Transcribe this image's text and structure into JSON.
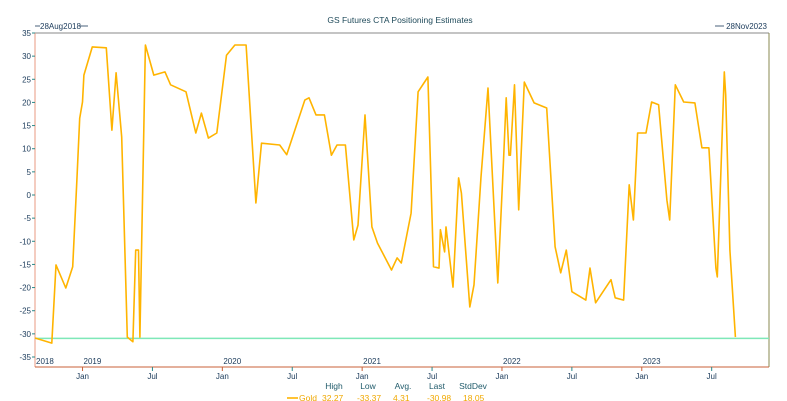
{
  "chart_data": {
    "type": "line",
    "title": "GS Futures CTA Positioning Estimates",
    "start_label": "28Aug2018",
    "end_label": "28Nov2023",
    "xlim": [
      2018.66,
      2023.91
    ],
    "ylim": [
      -37.2,
      35
    ],
    "yticks": [
      35,
      30,
      25,
      20,
      15,
      10,
      5,
      0,
      -5,
      -10,
      -15,
      -20,
      -25,
      -30,
      -35
    ],
    "year_labels": [
      {
        "label": "2018",
        "x": 2018.66
      },
      {
        "label": "2019",
        "x": 2019.0
      },
      {
        "label": "2020",
        "x": 2020.0
      },
      {
        "label": "2021",
        "x": 2021.0
      },
      {
        "label": "2022",
        "x": 2022.0
      },
      {
        "label": "2023",
        "x": 2023.0
      }
    ],
    "month_ticks": [
      {
        "label": "Jan",
        "x": 2019.0
      },
      {
        "label": "Jul",
        "x": 2019.5
      },
      {
        "label": "Jan",
        "x": 2020.0
      },
      {
        "label": "Jul",
        "x": 2020.5
      },
      {
        "label": "Jan",
        "x": 2021.0
      },
      {
        "label": "Jul",
        "x": 2021.5
      },
      {
        "label": "Jan",
        "x": 2022.0
      },
      {
        "label": "Jul",
        "x": 2022.5
      },
      {
        "label": "Jan",
        "x": 2023.0
      },
      {
        "label": "Jul",
        "x": 2023.5
      }
    ],
    "reference_line": -30.98,
    "series": [
      {
        "name": "Gold",
        "color": "#ffb400",
        "x": [
          2018.66,
          2018.78,
          2018.81,
          2018.88,
          2018.93,
          2018.96,
          2018.98,
          2019.0,
          2019.01,
          2019.07,
          2019.17,
          2019.21,
          2019.24,
          2019.28,
          2019.32,
          2019.36,
          2019.38,
          2019.4,
          2019.41,
          2019.45,
          2019.51,
          2019.59,
          2019.63,
          2019.74,
          2019.81,
          2019.85,
          2019.9,
          2019.96,
          2020.03,
          2020.09,
          2020.17,
          2020.19,
          2020.24,
          2020.28,
          2020.41,
          2020.46,
          2020.59,
          2020.62,
          2020.67,
          2020.73,
          2020.78,
          2020.82,
          2020.88,
          2020.94,
          2020.97,
          2021.02,
          2021.07,
          2021.11,
          2021.21,
          2021.25,
          2021.28,
          2021.35,
          2021.4,
          2021.47,
          2021.51,
          2021.55,
          2021.56,
          2021.59,
          2021.6,
          2021.65,
          2021.69,
          2021.71,
          2021.77,
          2021.8,
          2021.85,
          2021.9,
          2021.97,
          2022.01,
          2022.03,
          2022.05,
          2022.06,
          2022.09,
          2022.12,
          2022.16,
          2022.23,
          2022.32,
          2022.38,
          2022.42,
          2022.46,
          2022.5,
          2022.6,
          2022.63,
          2022.67,
          2022.78,
          2022.81,
          2022.87,
          2022.91,
          2022.94,
          2022.97,
          2023.03,
          2023.07,
          2023.12,
          2023.18,
          2023.2,
          2023.24,
          2023.3,
          2023.38,
          2023.43,
          2023.48,
          2023.53,
          2023.54,
          2023.59,
          2023.6,
          2023.63,
          2023.67
        ],
        "y": [
          -30.9,
          -32.0,
          -15.1,
          -20.1,
          -15.5,
          3.3,
          16.6,
          20.1,
          25.9,
          32.0,
          31.8,
          14.0,
          26.4,
          12.5,
          -30.7,
          -31.7,
          -11.9,
          -11.9,
          -30.7,
          32.4,
          25.9,
          26.6,
          23.8,
          22.3,
          13.4,
          17.7,
          12.3,
          13.4,
          30.2,
          32.4,
          32.4,
          22.7,
          -1.7,
          11.2,
          10.8,
          8.7,
          20.5,
          21.0,
          17.3,
          17.3,
          8.6,
          10.8,
          10.8,
          -9.7,
          -6.5,
          17.3,
          -6.9,
          -10.4,
          -16.2,
          -13.6,
          -14.7,
          -3.9,
          22.3,
          25.5,
          -15.5,
          -15.8,
          -7.5,
          -12.3,
          -6.9,
          -19.9,
          3.7,
          0.4,
          -24.2,
          -19.4,
          3.9,
          23.1,
          -19.0,
          6.9,
          21.0,
          8.6,
          8.6,
          23.8,
          -3.2,
          24.4,
          19.9,
          18.8,
          -11.2,
          -16.8,
          -11.9,
          -20.9,
          -22.7,
          -15.8,
          -23.3,
          -18.3,
          -22.2,
          -22.7,
          2.2,
          -5.4,
          13.4,
          13.4,
          20.1,
          19.5,
          -1.1,
          -5.4,
          23.8,
          20.1,
          19.9,
          10.2,
          10.2,
          -15.8,
          -17.7,
          26.6,
          21.6,
          -11.9,
          -30.7
        ]
      }
    ],
    "stats": {
      "headers": [
        "High",
        "Low",
        "Avg.",
        "Last",
        "StdDev"
      ],
      "series_label": "Gold",
      "values": [
        "32.27",
        "-33.37",
        "4.31",
        "-30.98",
        "18.05"
      ]
    }
  }
}
